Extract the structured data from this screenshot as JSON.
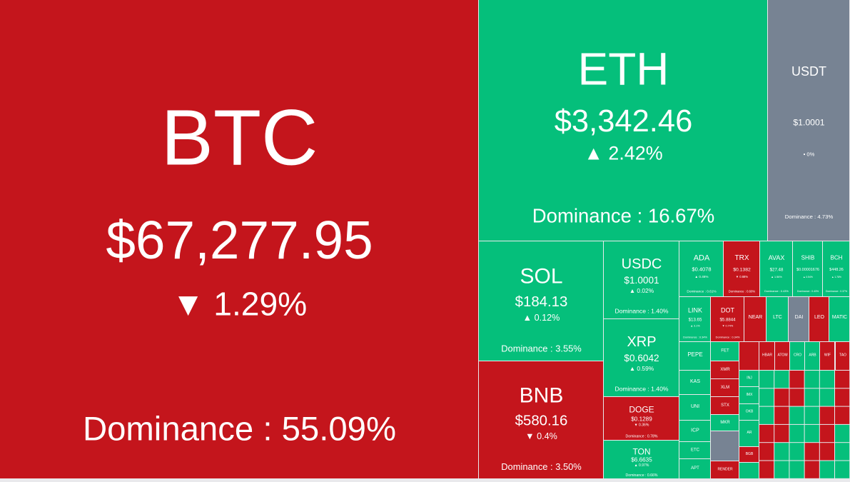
{
  "tiles": [
    {
      "symbol": "BTC",
      "price": "$67,277.95",
      "change": "▼ 1.29%",
      "dominance": "Dominance : 55.09%",
      "color": "#c4151c"
    },
    {
      "symbol": "ETH",
      "price": "$3,342.46",
      "change": "▲ 2.42%",
      "dominance": "Dominance : 16.67%",
      "color": "#05bf7b"
    },
    {
      "symbol": "USDT",
      "price": "$1.0001",
      "change": "▪ 0%",
      "dominance": "Dominance : 4.73%",
      "color": "#778393"
    },
    {
      "symbol": "SOL",
      "price": "$184.13",
      "change": "▲ 0.12%",
      "dominance": "Dominance : 3.55%",
      "color": "#05bf7b"
    },
    {
      "symbol": "BNB",
      "price": "$580.16",
      "change": "▼ 0.4%",
      "dominance": "Dominance : 3.50%",
      "color": "#c4151c"
    },
    {
      "symbol": "USDC",
      "price": "$1.0001",
      "change": "▲ 0.02%",
      "dominance": "Dominance : 1.40%",
      "color": "#05bf7b"
    },
    {
      "symbol": "XRP",
      "price": "$0.6042",
      "change": "▲ 0.59%",
      "dominance": "Dominance : 1.40%",
      "color": "#05bf7b"
    },
    {
      "symbol": "DOGE",
      "price": "$0.1289",
      "change": "▼ 0.36%",
      "dominance": "Dominance : 0.78%",
      "color": "#c4151c"
    },
    {
      "symbol": "TON",
      "price": "$6.6635",
      "change": "▲ 0.97%",
      "dominance": "Dominance : 0.66%",
      "color": "#05bf7b"
    },
    {
      "symbol": "ADA",
      "price": "$0.4078",
      "change": "▲ 0.46%",
      "dominance": "Dominance : 0.61%",
      "color": "#05bf7b"
    },
    {
      "symbol": "TRX",
      "price": "$0.1382",
      "change": "▼ 0.68%",
      "dominance": "Dominance : 0.60%",
      "color": "#c4151c"
    },
    {
      "symbol": "AVAX",
      "price": "$27.48",
      "change": "▲ 1.56%",
      "dominance": "Dominance : 0.43%",
      "color": "#05bf7b"
    },
    {
      "symbol": "SHIB",
      "price": "$0.00001676",
      "change": "▲ 0.54%",
      "dominance": "Dominance : 0.43%",
      "color": "#05bf7b"
    },
    {
      "symbol": "BCH",
      "price": "$448.26",
      "change": "▲ 1.78%",
      "dominance": "Dominance : 0.37%",
      "color": "#05bf7b"
    },
    {
      "symbol": "LINK",
      "price": "$13.65",
      "change": "▲ 3.1%",
      "dominance": "Dominance : 0.34%",
      "color": "#05bf7b"
    },
    {
      "symbol": "DOT",
      "price": "$5.8844",
      "change": "▼ 0.74%",
      "dominance": "Dominance : 0.34%",
      "color": "#c4151c"
    },
    {
      "symbol": "NEAR",
      "color": "#c4151c"
    },
    {
      "symbol": "LTC",
      "color": "#05bf7b"
    },
    {
      "symbol": "DAI",
      "color": "#778393"
    },
    {
      "symbol": "LEO",
      "color": "#c4151c"
    },
    {
      "symbol": "MATIC",
      "color": "#05bf7b"
    },
    {
      "symbol": "PEPE",
      "color": "#05bf7b"
    },
    {
      "symbol": "KAS",
      "color": "#05bf7b"
    },
    {
      "symbol": "UNI",
      "color": "#05bf7b"
    },
    {
      "symbol": "ICP",
      "color": "#05bf7b"
    },
    {
      "symbol": "ETC",
      "color": "#05bf7b"
    },
    {
      "symbol": "APT",
      "color": "#05bf7b"
    },
    {
      "symbol": "FET",
      "color": "#05bf7b"
    },
    {
      "symbol": "XMR",
      "color": "#c4151c"
    },
    {
      "symbol": "XLM",
      "color": "#c4151c"
    },
    {
      "symbol": "STX",
      "color": "#c4151c"
    },
    {
      "symbol": "MKR",
      "color": "#05bf7b"
    },
    {
      "symbol": "RENDER",
      "color": "#c4151c"
    },
    {
      "symbol": "HBAR",
      "color": "#c4151c"
    },
    {
      "symbol": "ATOM",
      "color": "#c4151c"
    },
    {
      "symbol": "CRO",
      "color": "#05bf7b"
    },
    {
      "symbol": "ARB",
      "color": "#05bf7b"
    },
    {
      "symbol": "WIF",
      "color": "#c4151c"
    },
    {
      "symbol": "TAO",
      "color": "#c4151c"
    },
    {
      "symbol": "INJ",
      "color": "#05bf7b"
    },
    {
      "symbol": "IMX",
      "color": "#05bf7b"
    },
    {
      "symbol": "OKB",
      "color": "#05bf7b"
    },
    {
      "symbol": "AR",
      "color": "#05bf7b"
    },
    {
      "symbol": "BGB",
      "color": "#c4151c"
    }
  ]
}
